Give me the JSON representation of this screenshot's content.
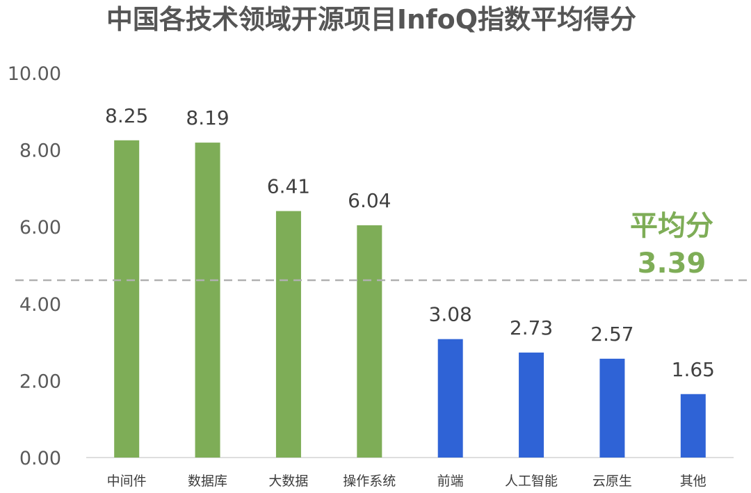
{
  "chart_data": {
    "type": "bar",
    "title": "中国各技术领域开源项目InfoQ指数平均得分",
    "xlabel": "",
    "ylabel": "",
    "ylim": [
      0,
      10
    ],
    "yticks": [
      "0.00",
      "2.00",
      "4.00",
      "6.00",
      "8.00",
      "10.00"
    ],
    "categories": [
      "中间件",
      "数据库",
      "大数据",
      "操作系统",
      "前端",
      "人工智能",
      "云原生",
      "其他"
    ],
    "values": [
      8.25,
      8.19,
      6.41,
      6.04,
      3.08,
      2.73,
      2.57,
      1.65
    ],
    "value_labels": [
      "8.25",
      "8.19",
      "6.41",
      "6.04",
      "3.08",
      "2.73",
      "2.57",
      "1.65"
    ],
    "bar_colors": [
      "#7ead57",
      "#7ead57",
      "#7ead57",
      "#7ead57",
      "#2f63d6",
      "#2f63d6",
      "#2f63d6",
      "#2f63d6"
    ],
    "reference_line": {
      "label": "平均分",
      "value_label": "3.39",
      "value": 3.39,
      "style": "dashed",
      "line_color": "#b0b0b0",
      "label_color": "#7ead57"
    },
    "grid": false,
    "legend": "none"
  }
}
